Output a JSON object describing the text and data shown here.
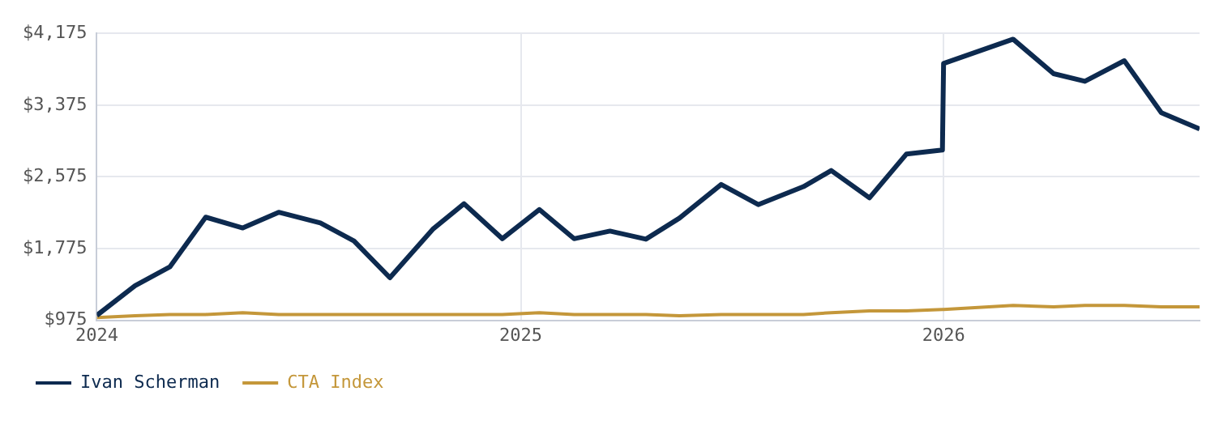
{
  "chart_data": {
    "type": "line",
    "x": [
      "2024-01-01",
      "2024-02-03",
      "2024-03-04",
      "2024-04-04",
      "2024-05-06",
      "2024-06-06",
      "2024-07-12",
      "2024-08-10",
      "2024-09-10",
      "2024-10-17",
      "2024-11-13",
      "2024-12-16",
      "2025-01-17",
      "2025-02-16",
      "2025-03-19",
      "2025-04-19",
      "2025-05-18",
      "2025-06-23",
      "2025-07-25",
      "2025-09-02",
      "2025-09-26",
      "2025-10-29",
      "2025-11-30",
      "2025-12-31",
      "2026-01-01",
      "2026-03-02",
      "2026-04-06",
      "2026-05-03",
      "2026-06-06",
      "2026-07-08",
      "2026-08-10"
    ],
    "series": [
      {
        "name": "Ivan Scherman",
        "color": "#0d2a4f",
        "values": [
          1030,
          1360,
          1570,
          2125,
          2005,
          2180,
          2060,
          1860,
          1450,
          1990,
          2275,
          1885,
          2210,
          1885,
          1970,
          1880,
          2115,
          2490,
          2265,
          2465,
          2645,
          2340,
          2830,
          2875,
          3840,
          4110,
          3725,
          3640,
          3870,
          3290,
          3110
        ]
      },
      {
        "name": "CTA Index",
        "color": "#c4973a",
        "values": [
          1005,
          1025,
          1040,
          1040,
          1060,
          1040,
          1040,
          1040,
          1040,
          1040,
          1040,
          1040,
          1060,
          1040,
          1040,
          1040,
          1025,
          1040,
          1040,
          1040,
          1060,
          1080,
          1080,
          1095,
          1095,
          1140,
          1125,
          1140,
          1140,
          1125,
          1125
        ]
      }
    ],
    "xlim": [
      "2024-01-01",
      "2026-08-10"
    ],
    "xticks": [
      "2024",
      "2025",
      "2026"
    ],
    "ylim": [
      975,
      4175
    ],
    "yticks": [
      {
        "value": 975,
        "label": "$975"
      },
      {
        "value": 1775,
        "label": "$1,775"
      },
      {
        "value": 2575,
        "label": "$2,575"
      },
      {
        "value": 3375,
        "label": "$3,375"
      },
      {
        "value": 4175,
        "label": "$4,175"
      }
    ],
    "grid": true,
    "legend": "bottom",
    "marker": "none",
    "line_style": "solid"
  }
}
